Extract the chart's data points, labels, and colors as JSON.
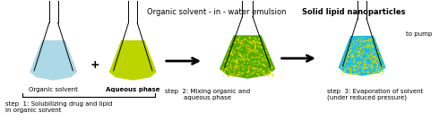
{
  "bg_color": "#ffffff",
  "title_text": "Organic solvent - in - water emulsion",
  "title2_text": "Solid lipid nanoparticles",
  "label_organic": "Organic solvent",
  "label_aqueous": "Aqueous phase",
  "label_step1": "step  1: Solubilizing drug and lipid\nin organic solvent",
  "label_step2": "step  2: Mixing organic and\naqueous phase",
  "label_step3": "step  3: Evaporation of solvent\n(under reduced pressure)",
  "label_topump": "to pump",
  "flask_color1": "#add8e6",
  "flask_color2": "#bcd400",
  "flask_color3_bg": "#55aa00",
  "flask_color3_dots": "#eedd00",
  "flask_color4_bg": "#22bbdd",
  "flask_color4_dots": "#dddd00"
}
